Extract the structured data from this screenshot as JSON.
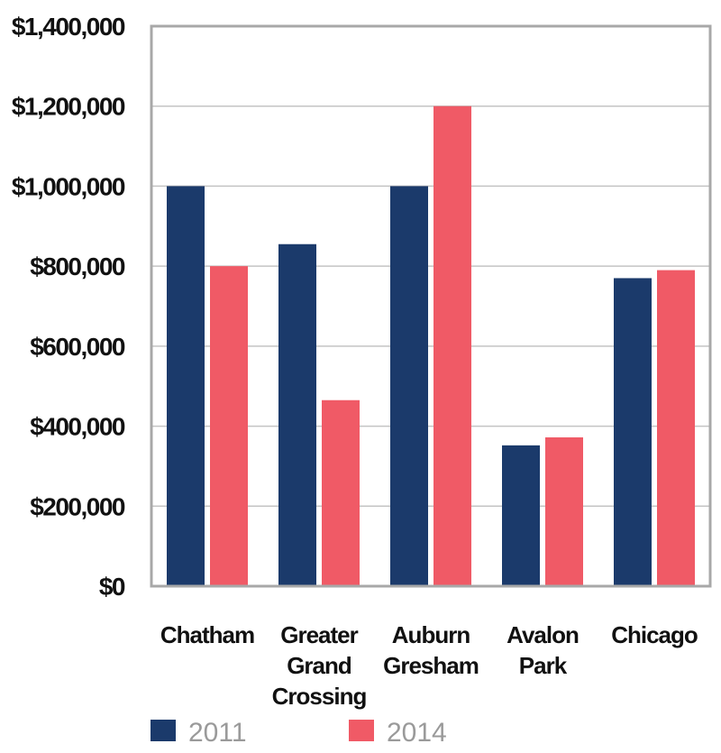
{
  "chart_data": {
    "type": "bar",
    "title": "",
    "xlabel": "",
    "ylabel": "",
    "categories": [
      [
        "Chatham"
      ],
      [
        "Greater",
        "Grand",
        "Crossing"
      ],
      [
        "Auburn",
        "Gresham"
      ],
      [
        "Avalon",
        "Park"
      ],
      [
        "Chicago"
      ]
    ],
    "series": [
      {
        "name": "2011",
        "color": "#1b3a6b",
        "values": [
          1000000,
          855000,
          1000000,
          352000,
          770000
        ]
      },
      {
        "name": "2014",
        "color": "#f05a66",
        "values": [
          800000,
          465000,
          1200000,
          372000,
          790000
        ]
      }
    ],
    "ylim": [
      0,
      1400000
    ],
    "yticks": [
      0,
      200000,
      400000,
      600000,
      800000,
      1000000,
      1200000,
      1400000
    ],
    "ytick_labels": [
      "$0",
      "$200,000",
      "$400,000",
      "$600,000",
      "$800,000",
      "$1,000,000",
      "$1,200,000",
      "$1,400,000"
    ],
    "grid": true,
    "legend": "bottom-left"
  }
}
